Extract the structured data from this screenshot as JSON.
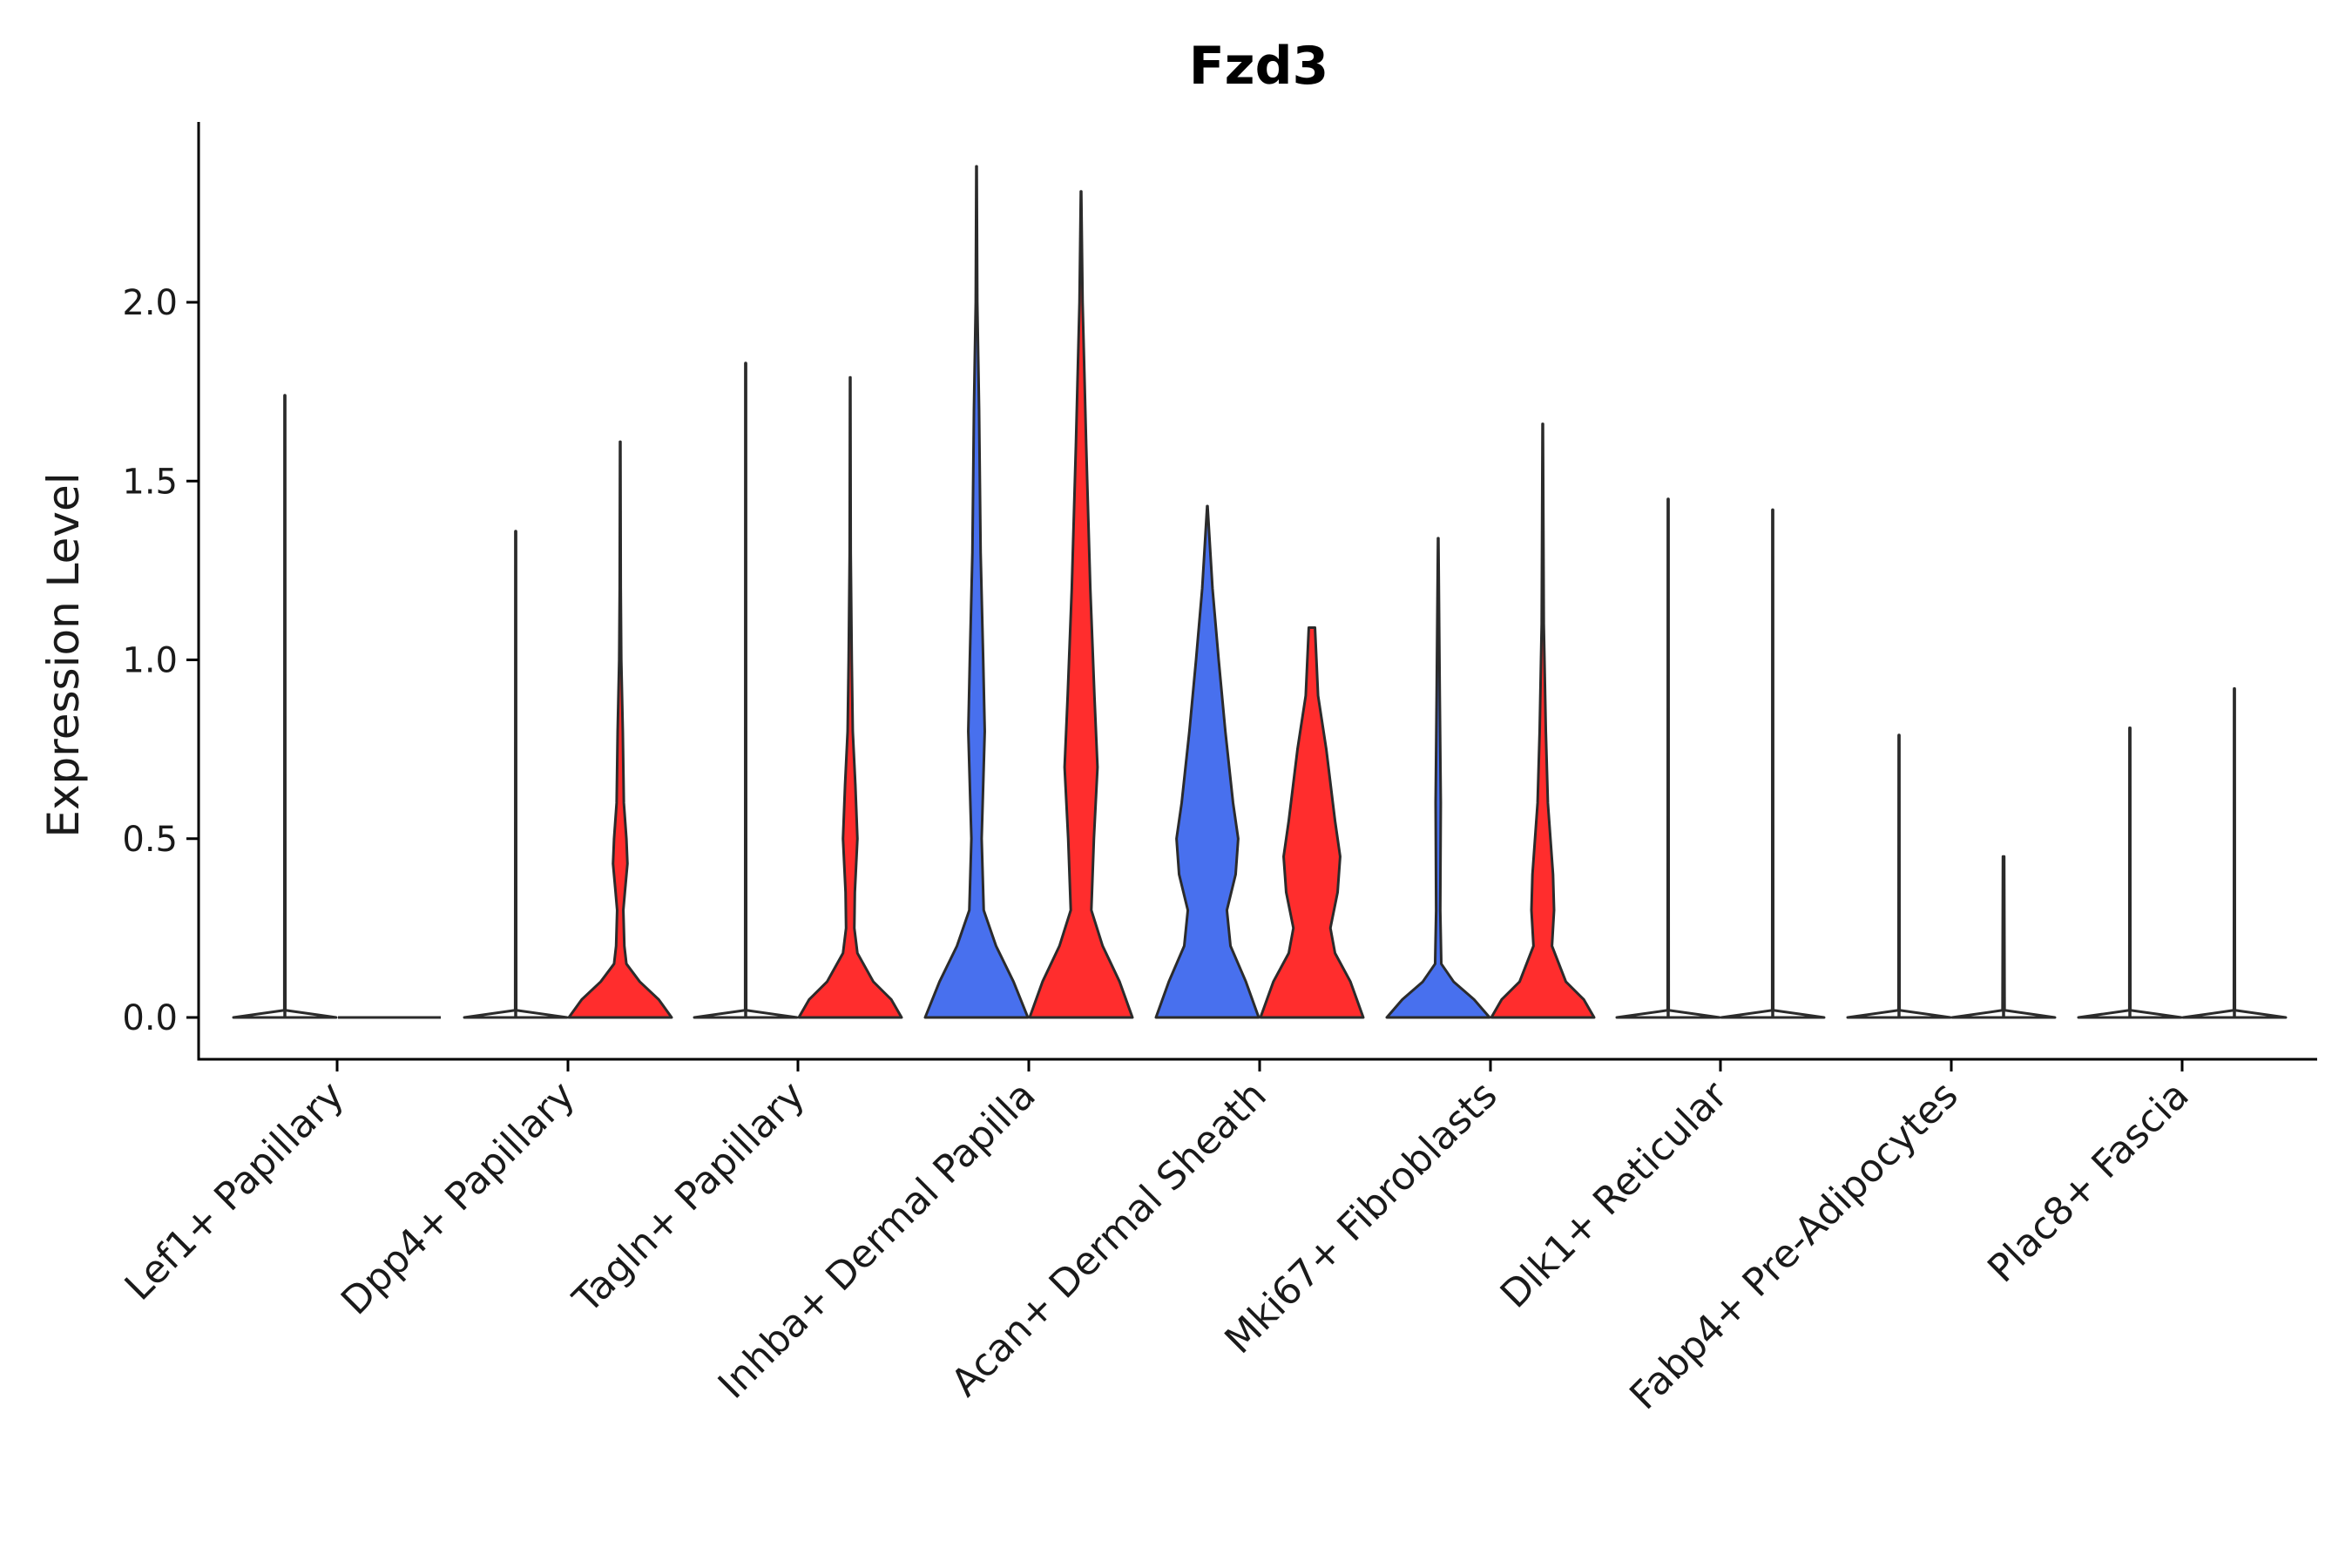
{
  "chart_data": {
    "type": "violin",
    "title": "Fzd3",
    "xlabel": "",
    "ylabel": "Expression Level",
    "ylim": [
      -0.12,
      2.5
    ],
    "yticks": [
      0.0,
      0.5,
      1.0,
      1.5,
      2.0
    ],
    "ytick_labels": [
      "0.0",
      "0.5",
      "1.0",
      "1.5",
      "2.0"
    ],
    "grid": false,
    "legend": "none",
    "series_colors": {
      "blue": "#4870EE",
      "red": "#FF2D2D"
    },
    "categories": [
      "Lef1+ Papillary",
      "Dpp4+ Papillary",
      "Tagln+ Papillary",
      "Inhba+ Dermal Papilla",
      "Acan+ Dermal Sheath",
      "Mki67+ Fibroblasts",
      "Dlk1+ Reticular",
      "Fabp4+ Pre-Adipocytes",
      "Plac8+ Fascia"
    ],
    "violins": [
      {
        "category": "Lef1+ Papillary",
        "color": "blue",
        "max": 1.74,
        "profile": [
          [
            0,
            1.0
          ],
          [
            0.02,
            0.01
          ],
          [
            1.74,
            0.004
          ]
        ]
      },
      {
        "category": "Lef1+ Papillary",
        "color": "red",
        "max": 0.0,
        "profile": []
      },
      {
        "category": "Dpp4+ Papillary",
        "color": "blue",
        "max": 1.36,
        "profile": [
          [
            0,
            1.0
          ],
          [
            0.02,
            0.01
          ],
          [
            1.36,
            0.004
          ]
        ]
      },
      {
        "category": "Dpp4+ Papillary",
        "color": "red",
        "max": 1.61,
        "profile": [
          [
            0,
            1.0
          ],
          [
            0.05,
            0.75
          ],
          [
            0.1,
            0.38
          ],
          [
            0.15,
            0.12
          ],
          [
            0.2,
            0.08
          ],
          [
            0.3,
            0.06
          ],
          [
            0.35,
            0.09
          ],
          [
            0.43,
            0.14
          ],
          [
            0.5,
            0.12
          ],
          [
            0.6,
            0.07
          ],
          [
            0.8,
            0.05
          ],
          [
            1.0,
            0.02
          ],
          [
            1.2,
            0.01
          ],
          [
            1.61,
            0.004
          ]
        ]
      },
      {
        "category": "Tagln+ Papillary",
        "color": "blue",
        "max": 1.83,
        "profile": [
          [
            0,
            1.0
          ],
          [
            0.02,
            0.01
          ],
          [
            1.83,
            0.004
          ]
        ]
      },
      {
        "category": "Tagln+ Papillary",
        "color": "red",
        "max": 1.79,
        "profile": [
          [
            0,
            1.0
          ],
          [
            0.05,
            0.8
          ],
          [
            0.1,
            0.45
          ],
          [
            0.18,
            0.14
          ],
          [
            0.25,
            0.08
          ],
          [
            0.35,
            0.09
          ],
          [
            0.5,
            0.14
          ],
          [
            0.65,
            0.1
          ],
          [
            0.8,
            0.05
          ],
          [
            1.0,
            0.03
          ],
          [
            1.3,
            0.01
          ],
          [
            1.79,
            0.004
          ]
        ]
      },
      {
        "category": "Inhba+ Dermal Papilla",
        "color": "blue",
        "max": 2.38,
        "profile": [
          [
            0,
            1.0
          ],
          [
            0.1,
            0.72
          ],
          [
            0.2,
            0.38
          ],
          [
            0.3,
            0.14
          ],
          [
            0.5,
            0.1
          ],
          [
            0.8,
            0.16
          ],
          [
            1.0,
            0.13
          ],
          [
            1.3,
            0.08
          ],
          [
            1.7,
            0.05
          ],
          [
            2.0,
            0.015
          ],
          [
            2.38,
            0.004
          ]
        ]
      },
      {
        "category": "Inhba+ Dermal Papilla",
        "color": "red",
        "max": 2.31,
        "profile": [
          [
            0,
            1.0
          ],
          [
            0.1,
            0.75
          ],
          [
            0.2,
            0.42
          ],
          [
            0.3,
            0.2
          ],
          [
            0.5,
            0.25
          ],
          [
            0.7,
            0.32
          ],
          [
            0.9,
            0.26
          ],
          [
            1.2,
            0.18
          ],
          [
            1.6,
            0.1
          ],
          [
            2.0,
            0.03
          ],
          [
            2.31,
            0.004
          ]
        ]
      },
      {
        "category": "Acan+ Dermal Sheath",
        "color": "blue",
        "max": 1.43,
        "profile": [
          [
            0,
            1.0
          ],
          [
            0.1,
            0.75
          ],
          [
            0.2,
            0.45
          ],
          [
            0.3,
            0.38
          ],
          [
            0.4,
            0.55
          ],
          [
            0.5,
            0.6
          ],
          [
            0.6,
            0.5
          ],
          [
            0.8,
            0.35
          ],
          [
            1.0,
            0.22
          ],
          [
            1.2,
            0.1
          ],
          [
            1.43,
            0.004
          ]
        ]
      },
      {
        "category": "Acan+ Dermal Sheath",
        "color": "red",
        "max": 1.09,
        "profile": [
          [
            0,
            1.0
          ],
          [
            0.1,
            0.75
          ],
          [
            0.18,
            0.45
          ],
          [
            0.25,
            0.36
          ],
          [
            0.35,
            0.5
          ],
          [
            0.45,
            0.55
          ],
          [
            0.55,
            0.45
          ],
          [
            0.75,
            0.28
          ],
          [
            0.9,
            0.12
          ],
          [
            1.09,
            0.06
          ]
        ]
      },
      {
        "category": "Mki67+ Fibroblasts",
        "color": "blue",
        "max": 1.34,
        "profile": [
          [
            0,
            1.0
          ],
          [
            0.05,
            0.7
          ],
          [
            0.1,
            0.3
          ],
          [
            0.15,
            0.06
          ],
          [
            0.3,
            0.04
          ],
          [
            0.6,
            0.05
          ],
          [
            0.9,
            0.03
          ],
          [
            1.34,
            0.004
          ]
        ]
      },
      {
        "category": "Mki67+ Fibroblasts",
        "color": "red",
        "max": 1.66,
        "profile": [
          [
            0,
            1.0
          ],
          [
            0.05,
            0.8
          ],
          [
            0.1,
            0.45
          ],
          [
            0.2,
            0.18
          ],
          [
            0.3,
            0.22
          ],
          [
            0.4,
            0.2
          ],
          [
            0.6,
            0.1
          ],
          [
            0.8,
            0.06
          ],
          [
            1.1,
            0.02
          ],
          [
            1.66,
            0.004
          ]
        ]
      },
      {
        "category": "Dlk1+ Reticular",
        "color": "blue",
        "max": 1.45,
        "profile": [
          [
            0,
            1.0
          ],
          [
            0.02,
            0.01
          ],
          [
            1.45,
            0.004
          ]
        ]
      },
      {
        "category": "Dlk1+ Reticular",
        "color": "red",
        "max": 1.42,
        "profile": [
          [
            0,
            1.0
          ],
          [
            0.02,
            0.01
          ],
          [
            1.42,
            0.004
          ]
        ]
      },
      {
        "category": "Fabp4+ Pre-Adipocytes",
        "color": "blue",
        "max": 0.79,
        "profile": [
          [
            0,
            1.0
          ],
          [
            0.02,
            0.01
          ],
          [
            0.79,
            0.004
          ]
        ]
      },
      {
        "category": "Fabp4+ Pre-Adipocytes",
        "color": "red",
        "max": 0.45,
        "profile": [
          [
            0,
            1.0
          ],
          [
            0.02,
            0.02
          ],
          [
            0.45,
            0.012
          ]
        ]
      },
      {
        "category": "Plac8+ Fascia",
        "color": "blue",
        "max": 0.81,
        "profile": [
          [
            0,
            1.0
          ],
          [
            0.02,
            0.01
          ],
          [
            0.81,
            0.006
          ]
        ]
      },
      {
        "category": "Plac8+ Fascia",
        "color": "red",
        "max": 0.92,
        "profile": [
          [
            0,
            1.0
          ],
          [
            0.02,
            0.01
          ],
          [
            0.92,
            0.004
          ]
        ]
      }
    ]
  }
}
